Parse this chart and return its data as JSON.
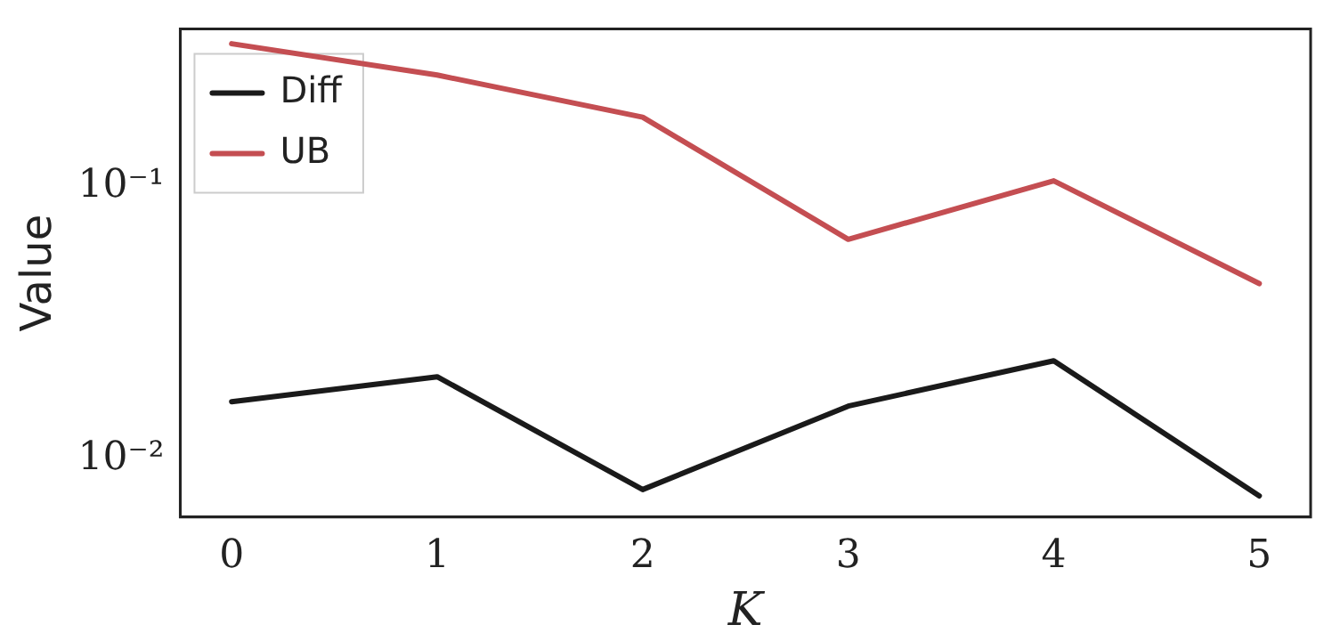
{
  "chart_data": {
    "type": "line",
    "xlabel": "K",
    "ylabel": "Value",
    "log": "y",
    "x": [
      0,
      1,
      2,
      3,
      4,
      5
    ],
    "series": [
      {
        "name": "Diff",
        "color": "#1a1a1a",
        "values": [
          0.0162,
          0.02,
          0.0077,
          0.0156,
          0.0229,
          0.0073
        ]
      },
      {
        "name": "UB",
        "color": "#c44e52",
        "values": [
          0.335,
          0.257,
          0.18,
          0.064,
          0.105,
          0.044
        ]
      }
    ],
    "xlim": [
      -0.25,
      5.25
    ],
    "xticks": [
      0,
      1,
      2,
      3,
      4,
      5
    ],
    "ylim": [
      0.0061,
      0.38
    ],
    "yticks": [
      {
        "value": 0.01,
        "label": "10⁻²"
      },
      {
        "value": 0.1,
        "label": "10⁻¹"
      }
    ],
    "grid": false,
    "legend": "top left",
    "marker": "none",
    "line_style": "solid"
  }
}
